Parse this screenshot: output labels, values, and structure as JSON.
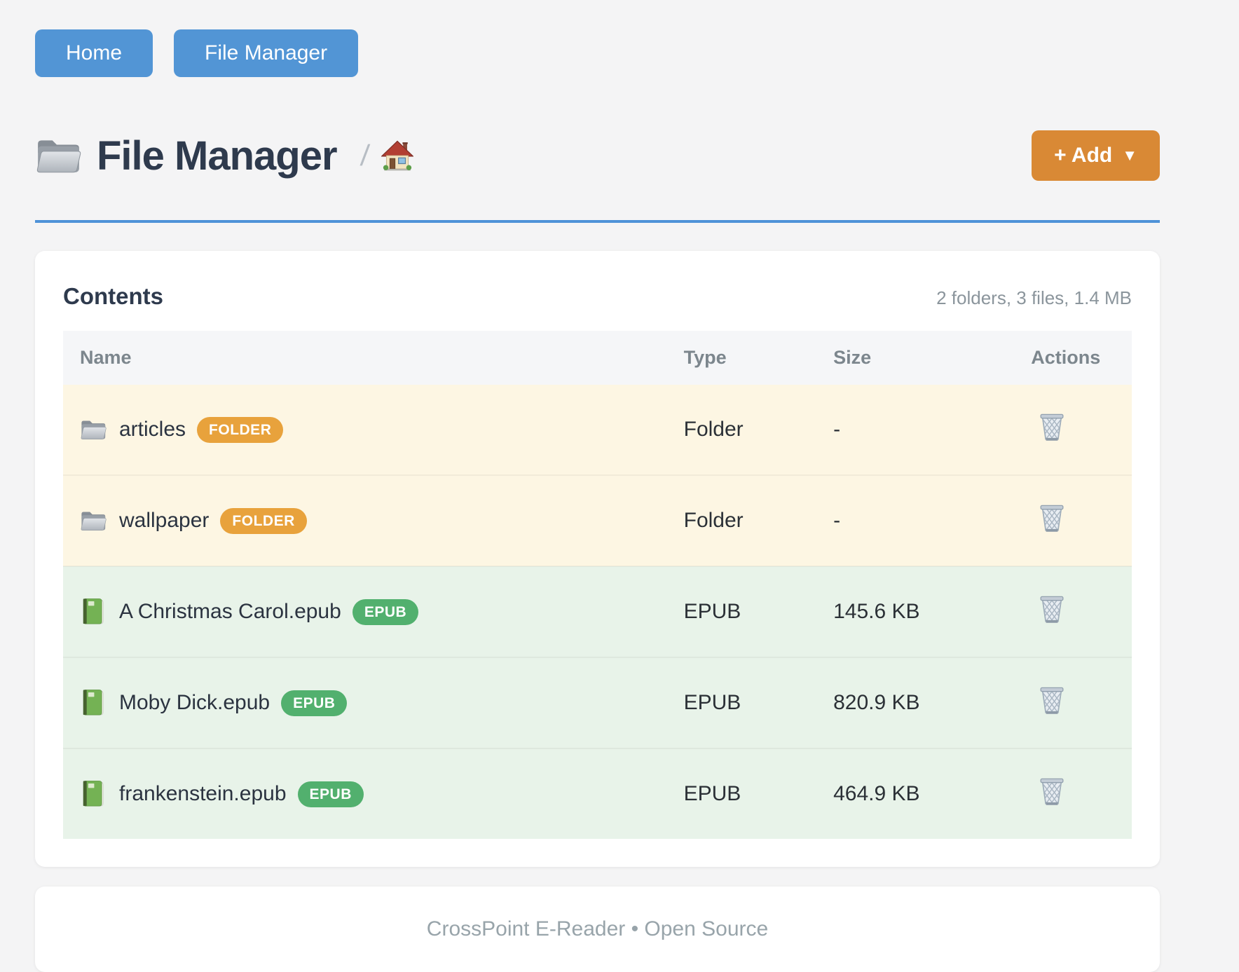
{
  "nav": {
    "items": [
      {
        "label": "Home"
      },
      {
        "label": "File Manager"
      }
    ]
  },
  "header": {
    "title": "File Manager",
    "title_icon": "folder-icon",
    "breadcrumb_separator": "/",
    "breadcrumb_home_icon": "home-icon",
    "add_button_label": "+ Add",
    "add_button_caret": "▼"
  },
  "contents": {
    "heading": "Contents",
    "summary": "2 folders, 3 files, 1.4 MB",
    "columns": [
      "Name",
      "Type",
      "Size",
      "Actions"
    ],
    "rows": [
      {
        "name": "articles",
        "kind": "folder",
        "icon": "folder-icon",
        "badge": "FOLDER",
        "type": "Folder",
        "size": "-",
        "action_icon": "trash-icon"
      },
      {
        "name": "wallpaper",
        "kind": "folder",
        "icon": "folder-icon",
        "badge": "FOLDER",
        "type": "Folder",
        "size": "-",
        "action_icon": "trash-icon"
      },
      {
        "name": "A Christmas Carol.epub",
        "kind": "epub",
        "icon": "book-icon",
        "badge": "EPUB",
        "type": "EPUB",
        "size": "145.6 KB",
        "action_icon": "trash-icon"
      },
      {
        "name": "Moby Dick.epub",
        "kind": "epub",
        "icon": "book-icon",
        "badge": "EPUB",
        "type": "EPUB",
        "size": "820.9 KB",
        "action_icon": "trash-icon"
      },
      {
        "name": "frankenstein.epub",
        "kind": "epub",
        "icon": "book-icon",
        "badge": "EPUB",
        "type": "EPUB",
        "size": "464.9 KB",
        "action_icon": "trash-icon"
      }
    ]
  },
  "footer": {
    "text": "CrossPoint E-Reader • Open Source"
  },
  "colors": {
    "page_bg": "#f4f4f5",
    "nav_blue": "#5295d5",
    "accent_blue": "#4e92d8",
    "add_orange": "#d98935",
    "badge_folder": "#e8a23c",
    "badge_epub": "#52b06e",
    "row_folder_bg": "#fdf6e3",
    "row_epub_bg": "#e8f3e9"
  }
}
